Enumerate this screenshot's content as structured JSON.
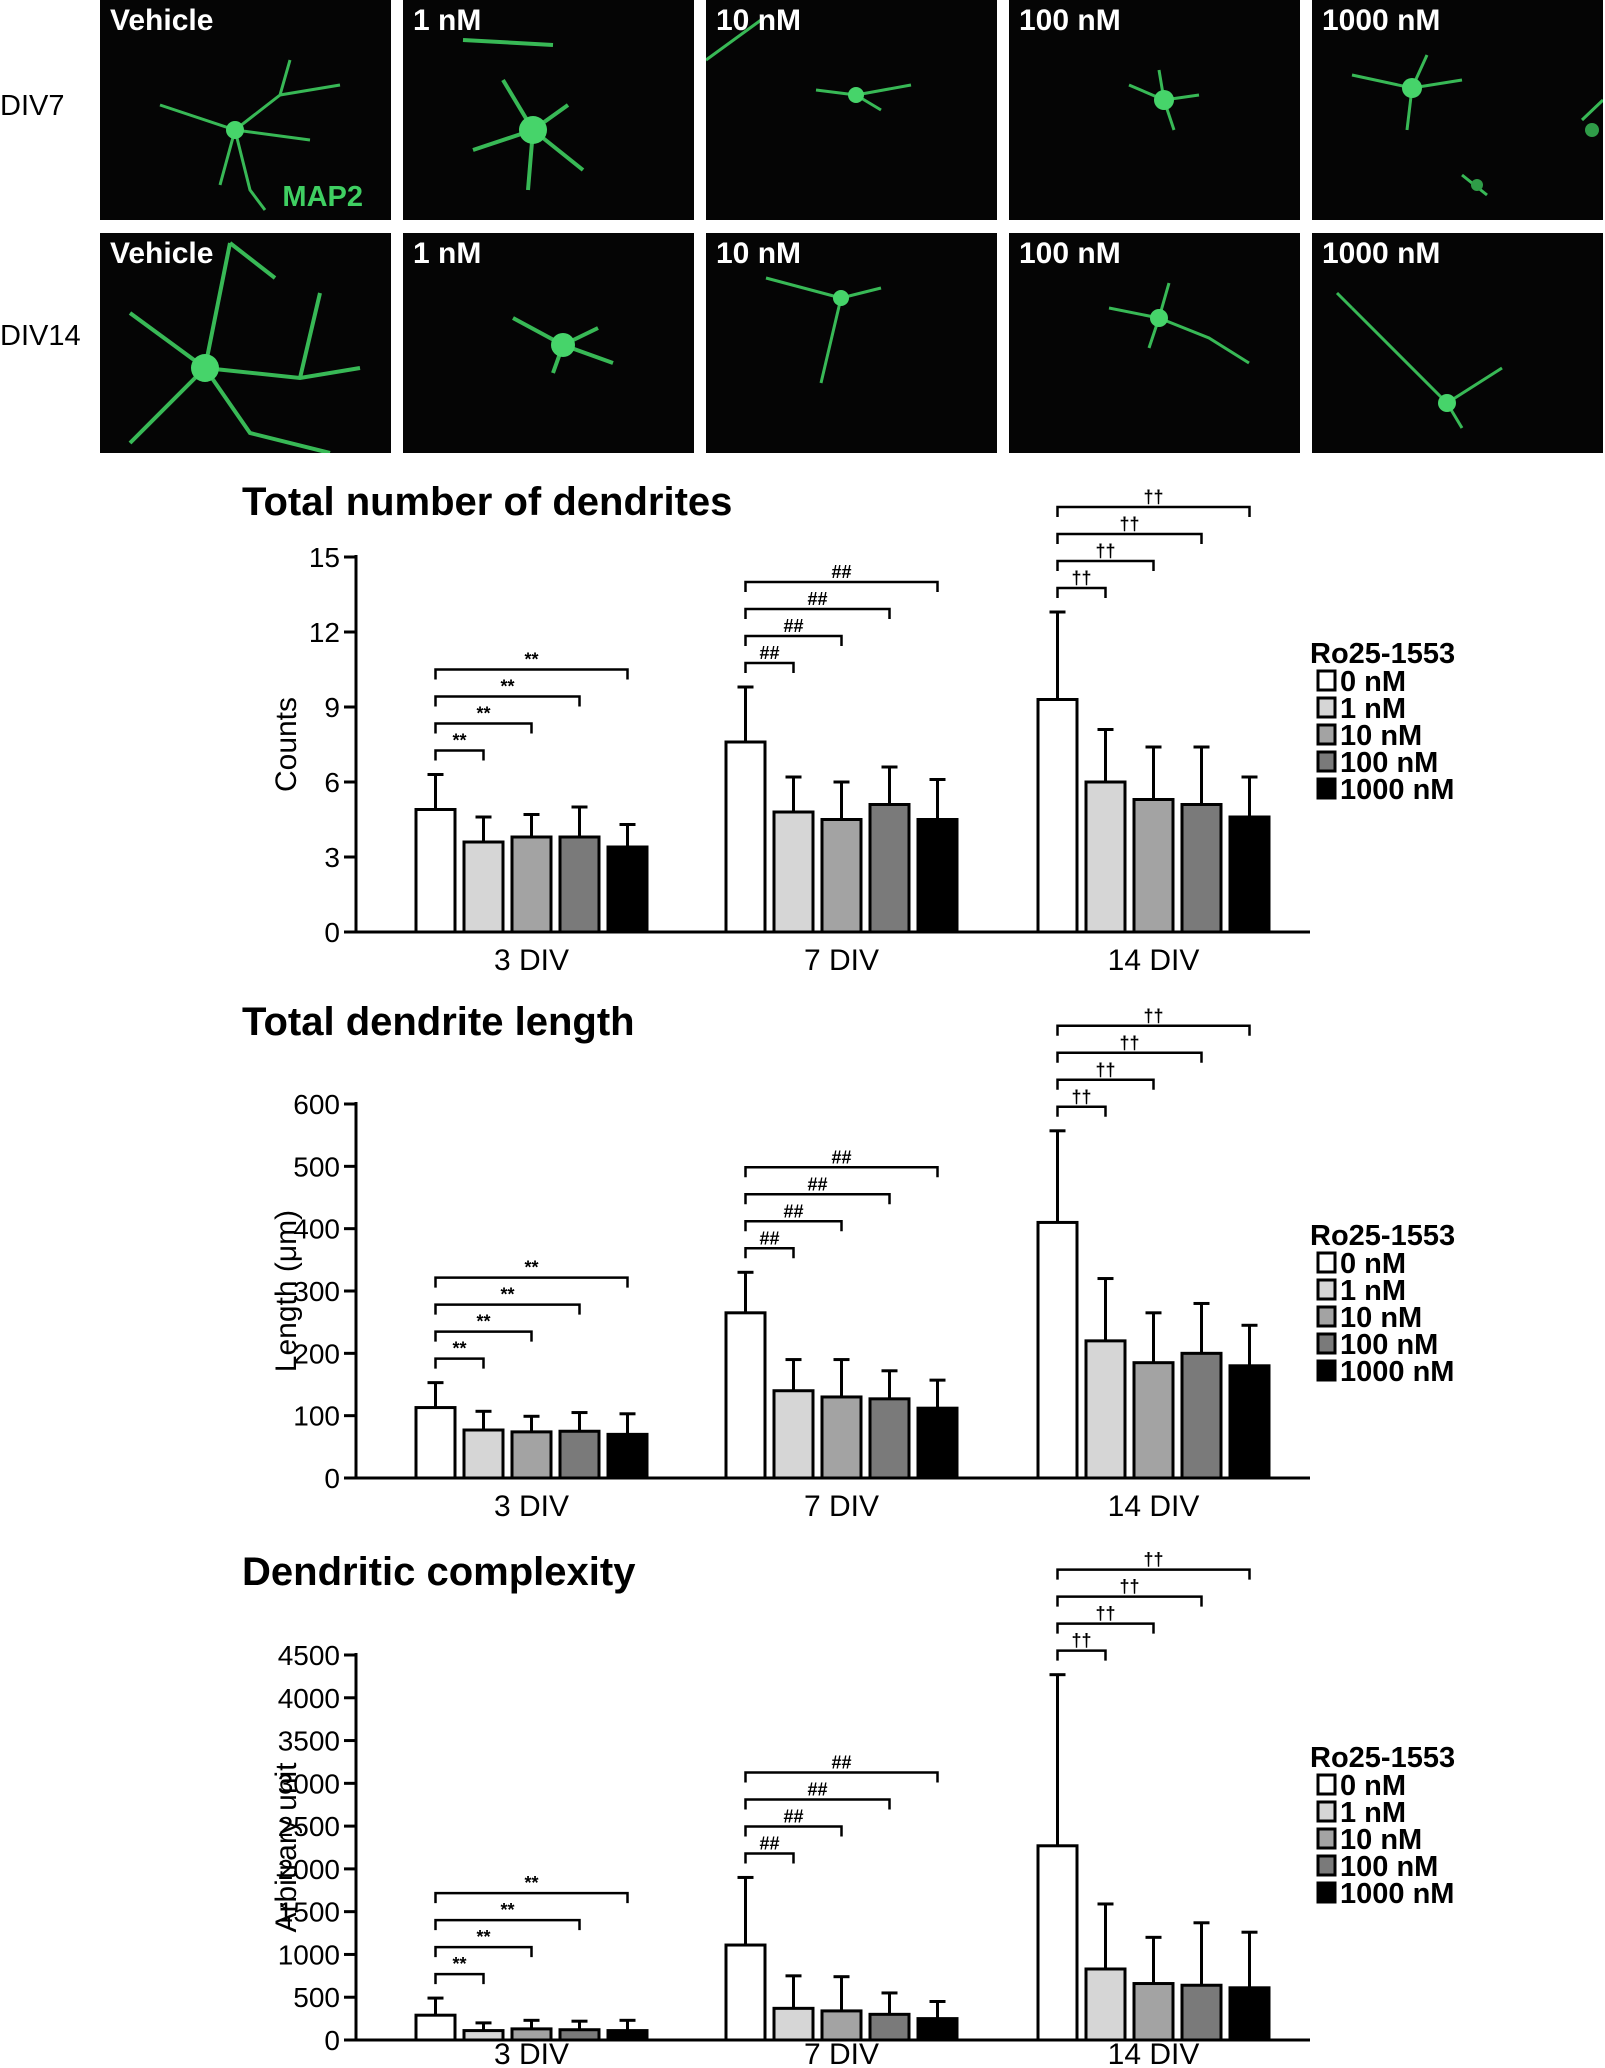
{
  "micrographs": {
    "rows": [
      {
        "label": "DIV7",
        "panels": [
          "Vehicle",
          "1 nM",
          "10 nM",
          "100 nM",
          "1000 nM"
        ]
      },
      {
        "label": "DIV14",
        "panels": [
          "Vehicle",
          "1 nM",
          "10 nM",
          "100 nM",
          "1000 nM"
        ]
      }
    ],
    "stain_label": "MAP2",
    "stain_color": "#3fcf62",
    "background_color": "#050505"
  },
  "chart_data": [
    {
      "type": "bar",
      "title": "Total number of dendrites",
      "ylabel": "Counts",
      "categories": [
        "3 DIV",
        "7 DIV",
        "14 DIV"
      ],
      "ylim": [
        0,
        15
      ],
      "yticks": [
        "0",
        "3",
        "6",
        "9",
        "12",
        "15"
      ],
      "legend_title": "Ro25-1553",
      "legend_position": "right",
      "series": [
        {
          "name": "0 nM",
          "color": "#ffffff",
          "values": [
            4.9,
            7.6,
            9.3
          ],
          "errors": [
            1.4,
            2.2,
            3.5
          ]
        },
        {
          "name": "1 nM",
          "color": "#d6d6d6",
          "values": [
            3.6,
            4.8,
            6.0
          ],
          "errors": [
            1.0,
            1.4,
            2.1
          ]
        },
        {
          "name": "10 nM",
          "color": "#a3a3a3",
          "values": [
            3.8,
            4.5,
            5.3
          ],
          "errors": [
            0.9,
            1.5,
            2.1
          ]
        },
        {
          "name": "100 nM",
          "color": "#7a7a7a",
          "values": [
            3.8,
            5.1,
            5.1
          ],
          "errors": [
            1.2,
            1.5,
            2.3
          ]
        },
        {
          "name": "1000 nM",
          "color": "#000000",
          "values": [
            3.4,
            4.5,
            4.6
          ],
          "errors": [
            0.9,
            1.6,
            1.6
          ]
        }
      ],
      "significance": [
        {
          "group": 0,
          "symbol": "**",
          "pairs": [
            [
              0,
              1
            ],
            [
              0,
              2
            ],
            [
              0,
              3
            ],
            [
              0,
              4
            ]
          ]
        },
        {
          "group": 1,
          "symbol": "##",
          "pairs": [
            [
              0,
              1
            ],
            [
              0,
              2
            ],
            [
              0,
              3
            ],
            [
              0,
              4
            ]
          ]
        },
        {
          "group": 2,
          "symbol": "††",
          "pairs": [
            [
              0,
              1
            ],
            [
              0,
              2
            ],
            [
              0,
              3
            ],
            [
              0,
              4
            ]
          ]
        }
      ]
    },
    {
      "type": "bar",
      "title": "Total dendrite length",
      "ylabel": "Length (μm)",
      "categories": [
        "3 DIV",
        "7 DIV",
        "14 DIV"
      ],
      "ylim": [
        0,
        600
      ],
      "yticks": [
        "0",
        "100",
        "200",
        "300",
        "400",
        "500",
        "600"
      ],
      "legend_title": "Ro25-1553",
      "legend_position": "right",
      "series": [
        {
          "name": "0 nM",
          "color": "#ffffff",
          "values": [
            113,
            265,
            410
          ],
          "errors": [
            40,
            65,
            147
          ]
        },
        {
          "name": "1 nM",
          "color": "#d6d6d6",
          "values": [
            77,
            140,
            220
          ],
          "errors": [
            30,
            50,
            100
          ]
        },
        {
          "name": "10 nM",
          "color": "#a3a3a3",
          "values": [
            74,
            130,
            185
          ],
          "errors": [
            25,
            60,
            80
          ]
        },
        {
          "name": "100 nM",
          "color": "#7a7a7a",
          "values": [
            75,
            127,
            200
          ],
          "errors": [
            30,
            45,
            80
          ]
        },
        {
          "name": "1000 nM",
          "color": "#000000",
          "values": [
            70,
            112,
            180
          ],
          "errors": [
            33,
            45,
            65
          ]
        }
      ],
      "significance": [
        {
          "group": 0,
          "symbol": "**",
          "pairs": [
            [
              0,
              1
            ],
            [
              0,
              2
            ],
            [
              0,
              3
            ],
            [
              0,
              4
            ]
          ]
        },
        {
          "group": 1,
          "symbol": "##",
          "pairs": [
            [
              0,
              1
            ],
            [
              0,
              2
            ],
            [
              0,
              3
            ],
            [
              0,
              4
            ]
          ]
        },
        {
          "group": 2,
          "symbol": "††",
          "pairs": [
            [
              0,
              1
            ],
            [
              0,
              2
            ],
            [
              0,
              3
            ],
            [
              0,
              4
            ]
          ]
        }
      ]
    },
    {
      "type": "bar",
      "title": "Dendritic complexity",
      "ylabel": "Arbitrary unit",
      "categories": [
        "3 DIV",
        "7 DIV",
        "14 DIV"
      ],
      "ylim": [
        0,
        4500
      ],
      "yticks": [
        "0",
        "500",
        "1000",
        "1500",
        "2000",
        "2500",
        "3000",
        "3500",
        "4000",
        "4500"
      ],
      "legend_title": "Ro25-1553",
      "legend_position": "right",
      "series": [
        {
          "name": "0 nM",
          "color": "#ffffff",
          "values": [
            290,
            1110,
            2270
          ],
          "errors": [
            200,
            790,
            2000
          ]
        },
        {
          "name": "1 nM",
          "color": "#d6d6d6",
          "values": [
            110,
            370,
            830
          ],
          "errors": [
            90,
            380,
            760
          ]
        },
        {
          "name": "10 nM",
          "color": "#a3a3a3",
          "values": [
            130,
            340,
            660
          ],
          "errors": [
            100,
            400,
            540
          ]
        },
        {
          "name": "100 nM",
          "color": "#7a7a7a",
          "values": [
            120,
            300,
            640
          ],
          "errors": [
            100,
            250,
            730
          ]
        },
        {
          "name": "1000 nM",
          "color": "#000000",
          "values": [
            110,
            250,
            610
          ],
          "errors": [
            120,
            200,
            650
          ]
        }
      ],
      "significance": [
        {
          "group": 0,
          "symbol": "**",
          "pairs": [
            [
              0,
              1
            ],
            [
              0,
              2
            ],
            [
              0,
              3
            ],
            [
              0,
              4
            ]
          ]
        },
        {
          "group": 1,
          "symbol": "##",
          "pairs": [
            [
              0,
              1
            ],
            [
              0,
              2
            ],
            [
              0,
              3
            ],
            [
              0,
              4
            ]
          ]
        },
        {
          "group": 2,
          "symbol": "††",
          "pairs": [
            [
              0,
              1
            ],
            [
              0,
              2
            ],
            [
              0,
              3
            ],
            [
              0,
              4
            ]
          ]
        }
      ]
    }
  ]
}
